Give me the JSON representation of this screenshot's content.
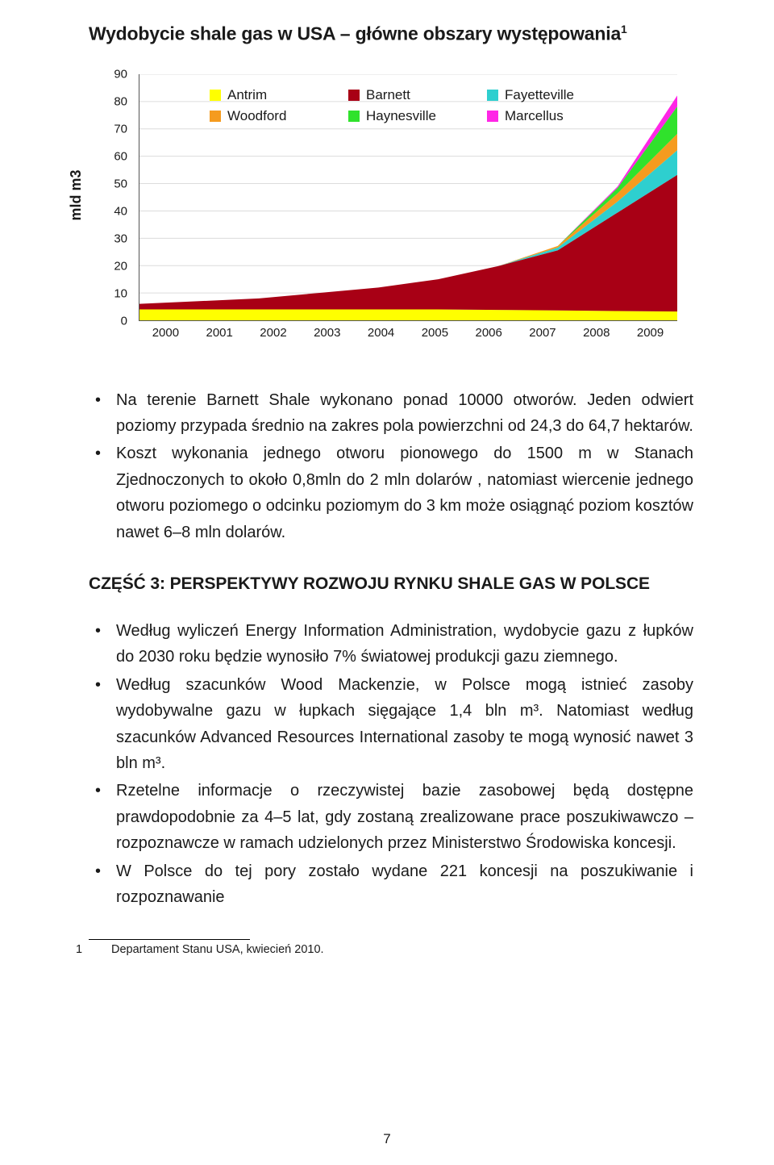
{
  "title": "Wydobycie shale gas w USA – główne obszary występowania",
  "title_sup": "1",
  "chart": {
    "type": "stacked-area",
    "y_axis_title": "mld m3",
    "ymin": 0,
    "ymax": 90,
    "ytick_step": 10,
    "x_categories": [
      "2000",
      "2001",
      "2002",
      "2003",
      "2004",
      "2005",
      "2006",
      "2007",
      "2008",
      "2009"
    ],
    "series": [
      {
        "name": "Antrim",
        "color": "#ffff00",
        "values": [
          4.0,
          4.0,
          4.0,
          4.0,
          4.0,
          4.0,
          3.8,
          3.6,
          3.4,
          3.2
        ]
      },
      {
        "name": "Barnett",
        "color": "#a80015",
        "values": [
          2.0,
          3.0,
          4.0,
          6.0,
          8.0,
          11.0,
          16.0,
          22.0,
          36.0,
          50.0
        ]
      },
      {
        "name": "Fayetteville",
        "color": "#2ecfcf",
        "values": [
          0,
          0,
          0,
          0,
          0,
          0,
          0,
          1.0,
          4.0,
          9.0
        ]
      },
      {
        "name": "Woodford",
        "color": "#f59b1f",
        "values": [
          0,
          0,
          0,
          0,
          0,
          0,
          0,
          0.6,
          3.0,
          6.0
        ]
      },
      {
        "name": "Haynesville",
        "color": "#30e22c",
        "values": [
          0,
          0,
          0,
          0,
          0,
          0,
          0,
          0,
          2.0,
          10.0
        ]
      },
      {
        "name": "Marcellus",
        "color": "#ff26e6",
        "values": [
          0,
          0,
          0,
          0,
          0,
          0,
          0,
          0,
          0.5,
          4.0
        ]
      }
    ],
    "background_color": "#ffffff",
    "grid_color": "#dcdcdc",
    "axis_color": "#555555",
    "tick_fontsize": 15,
    "legend_fontsize": 17
  },
  "bullets1": [
    "Na terenie Barnett Shale wykonano ponad 10000 otworów. Jeden odwiert poziomy przypada średnio na zakres pola powierzchni od 24,3 do 64,7 hektarów.",
    "Koszt wykonania jednego otworu pionowego do 1500 m w Stanach Zjednoczonych to około 0,8mln do 2 mln dolarów , natomiast wiercenie jednego otworu poziomego o odcinku poziomym do 3 km może osiągnąć poziom kosztów nawet 6–8 mln dolarów."
  ],
  "section_heading": "CZĘŚĆ 3: PERSPEKTYWY ROZWOJU RYNKU SHALE GAS W POLSCE",
  "bullets2": [
    "Według wyliczeń Energy Information Administration, wydobycie gazu z łupków do 2030 roku będzie wynosiło 7% światowej produkcji gazu ziemnego.",
    "Według szacunków Wood Mackenzie, w Polsce mogą istnieć zasoby wydobywalne gazu w łupkach sięgające 1,4 bln m³. Natomiast według szacunków Advanced Resources International zasoby te mogą wynosić nawet 3 bln m³.",
    "Rzetelne informacje o rzeczywistej bazie zasobowej będą dostępne prawdopodobnie za 4–5 lat, gdy zostaną zrealizowane prace poszukiwawczo – rozpoznawcze w ramach udzielonych przez Ministerstwo Środowiska koncesji.",
    "W Polsce do tej pory zostało wydane 221 koncesji na poszukiwanie i rozpoznawanie"
  ],
  "footnote_num": "1",
  "footnote_text": "Departament Stanu USA, kwiecień 2010.",
  "page_number": "7"
}
